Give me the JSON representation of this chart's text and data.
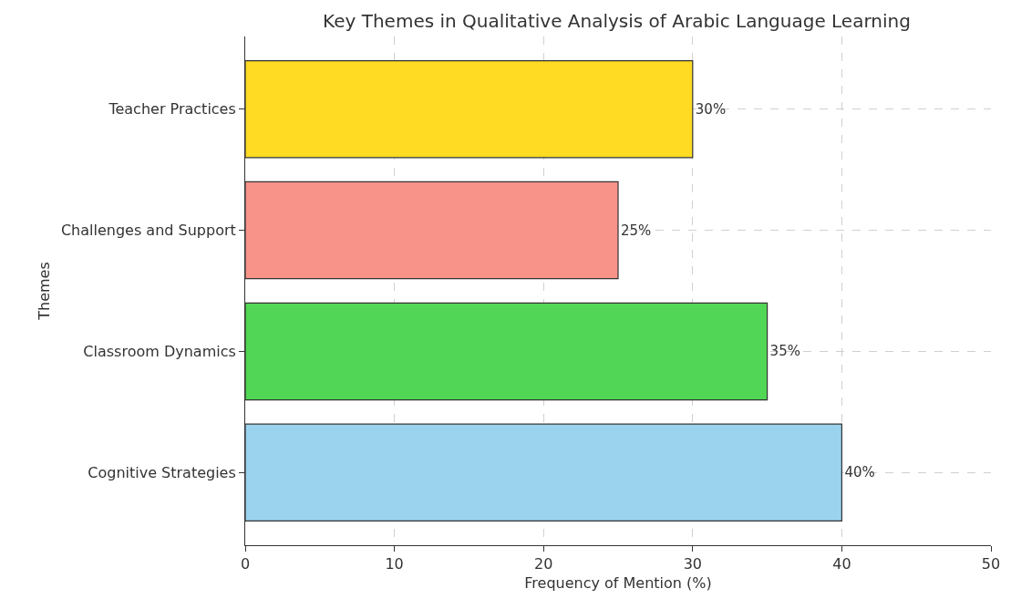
{
  "chart_data": {
    "type": "bar",
    "orientation": "horizontal",
    "title": "Key Themes in Qualitative Analysis of Arabic Language Learning",
    "xlabel": "Frequency of Mention (%)",
    "ylabel": "Themes",
    "categories": [
      "Teacher Practices",
      "Challenges and Support",
      "Classroom Dynamics",
      "Cognitive Strategies"
    ],
    "values": [
      30,
      25,
      35,
      40
    ],
    "value_labels": [
      "30%",
      "25%",
      "35%",
      "40%"
    ],
    "colors": [
      "#ffdb24",
      "#f8938a",
      "#52d655",
      "#9bd3ee"
    ],
    "xlim": [
      0,
      50
    ],
    "xticks": [
      0,
      10,
      20,
      30,
      40,
      50
    ],
    "grid": true
  }
}
